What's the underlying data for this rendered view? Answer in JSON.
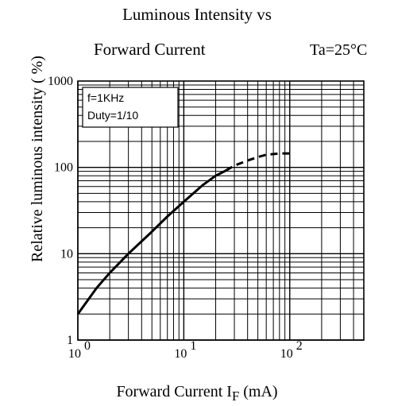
{
  "chart_data": {
    "type": "line",
    "title": "Luminous Intensity vs",
    "subtitle": "Forward Current",
    "condition": "Ta=25°C",
    "xlabel": "Forward Current   I",
    "xlabel_sub": "F",
    "xlabel_unit": " (mA)",
    "ylabel": "Relative luminous intensity ( %)",
    "xscale": "log",
    "yscale": "log",
    "xlim": [
      1,
      500
    ],
    "ylim": [
      1,
      1000
    ],
    "grid": true,
    "x_ticks": [
      {
        "value": 1,
        "base": "10",
        "exp": "0"
      },
      {
        "value": 10,
        "base": "10",
        "exp": "1"
      },
      {
        "value": 100,
        "base": "10",
        "exp": "2"
      }
    ],
    "y_ticks": [
      {
        "value": 1,
        "label": "1"
      },
      {
        "value": 10,
        "label": "10"
      },
      {
        "value": 100,
        "label": "100"
      },
      {
        "value": 1000,
        "label": "1000"
      }
    ],
    "legend": [
      "f=1KHz",
      "Duty=1/10"
    ],
    "legend_position": "top-left",
    "series": [
      {
        "style": "solid",
        "x": [
          1,
          1.5,
          2,
          3,
          5,
          7,
          10,
          15,
          20,
          25
        ],
        "y": [
          2,
          4,
          6,
          10,
          18,
          27,
          40,
          62,
          80,
          92
        ]
      },
      {
        "style": "dashed",
        "x": [
          25,
          30,
          40,
          50,
          60,
          80,
          100
        ],
        "y": [
          92,
          105,
          120,
          132,
          140,
          145,
          145
        ]
      }
    ]
  }
}
